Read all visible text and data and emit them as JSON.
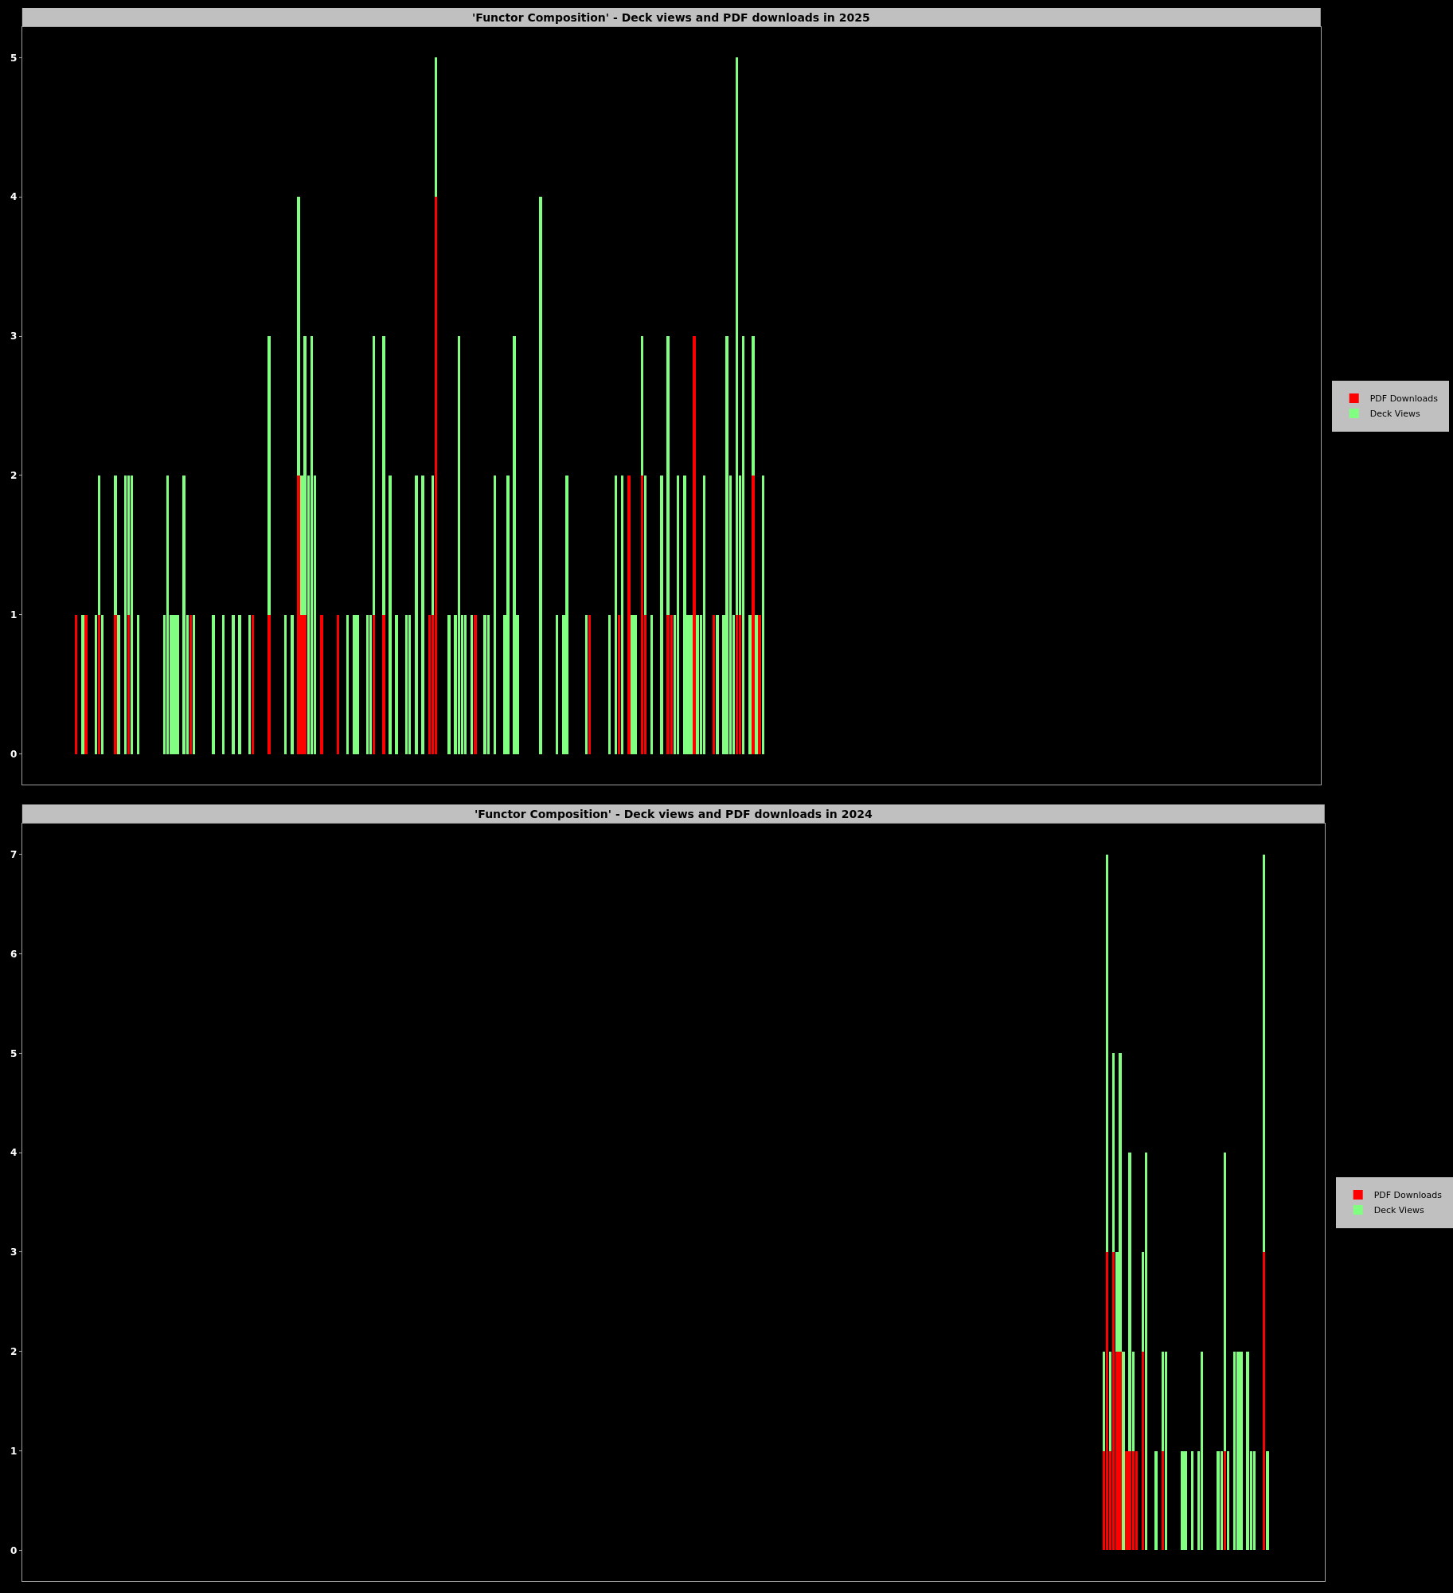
{
  "chart_data": [
    {
      "type": "bar",
      "title": "'Functor Composition' - Deck views and PDF downloads in 2025",
      "stacked": true,
      "grid": false,
      "legend": "right",
      "tick_labels": "y",
      "ylim": [
        -0.22,
        5.22
      ],
      "yticks": [
        0,
        1,
        2,
        3,
        4,
        5
      ],
      "categories": [
        null,
        null,
        null,
        null,
        null,
        null,
        null,
        null,
        null,
        null,
        null,
        null,
        null,
        null,
        null,
        null,
        null,
        null,
        null,
        null,
        null,
        null,
        null,
        null,
        null,
        null,
        null,
        null,
        null,
        null,
        null,
        null,
        null,
        null,
        null,
        null,
        null,
        null,
        null,
        null,
        null,
        null,
        null,
        null,
        null,
        null,
        null,
        null,
        null,
        null,
        null,
        null,
        null,
        null,
        null,
        null,
        null,
        null,
        null,
        null,
        null,
        null,
        null,
        null,
        null,
        null,
        null,
        null,
        null,
        null,
        null,
        null,
        null,
        null,
        null,
        null,
        null,
        null,
        null,
        null,
        null,
        null,
        null,
        null,
        null,
        null,
        null,
        null,
        null,
        null,
        null,
        null,
        null,
        null,
        null,
        null,
        null,
        null,
        null,
        null,
        null,
        null,
        null,
        null,
        null,
        null,
        null,
        null,
        null,
        null,
        null,
        null,
        null,
        null,
        null,
        null,
        null,
        null,
        null,
        null,
        null,
        null,
        null,
        null,
        null,
        null,
        null,
        null,
        null,
        null,
        null,
        null,
        null,
        null,
        null,
        null,
        null,
        null,
        null,
        null,
        null,
        null,
        null,
        null,
        null,
        null,
        null,
        null,
        null,
        null,
        null,
        null,
        null,
        null,
        null,
        null,
        null,
        null,
        null,
        null,
        null,
        null,
        null,
        null,
        null,
        null,
        null,
        null,
        null,
        null,
        null,
        null,
        null,
        null,
        null,
        null,
        null,
        null,
        null,
        null,
        null,
        null,
        null,
        null,
        null,
        null,
        null,
        null,
        null,
        null,
        null,
        null,
        null,
        null,
        null,
        null,
        null,
        null,
        null,
        null,
        null,
        null,
        null,
        null,
        null,
        null,
        null,
        null,
        null,
        null,
        null,
        null,
        null,
        null,
        null,
        null,
        null,
        null,
        null,
        null,
        null,
        null,
        null,
        null,
        null,
        null,
        null,
        null,
        null,
        null,
        null,
        null,
        null,
        null,
        null,
        null,
        null,
        null,
        null,
        null,
        null,
        null,
        null,
        null,
        null,
        null,
        null,
        null,
        null,
        null,
        null,
        null,
        null,
        null,
        null,
        null,
        null,
        null,
        null,
        null,
        null,
        null,
        null,
        null,
        null,
        null,
        null,
        null,
        null,
        null,
        null,
        null,
        null,
        null,
        null,
        null,
        null,
        null,
        null,
        null,
        null,
        null,
        null,
        null,
        null,
        null,
        null,
        null,
        null,
        null,
        null,
        null,
        null,
        null,
        null,
        null,
        null,
        null,
        null,
        null,
        null,
        null,
        null,
        null,
        null,
        null,
        null,
        null,
        null,
        null,
        null,
        null,
        null,
        null,
        null,
        null,
        null,
        null,
        null,
        null,
        null,
        null,
        null,
        null,
        null,
        null,
        null,
        null,
        null,
        null,
        null,
        null,
        null,
        null,
        null,
        null,
        null,
        null,
        null,
        null,
        null,
        null,
        null,
        null,
        null,
        null,
        null,
        null,
        null,
        null,
        null,
        null,
        null,
        null,
        null,
        null,
        null,
        null,
        null,
        null,
        null,
        null,
        null,
        null,
        null,
        null,
        null,
        null,
        null,
        null,
        null,
        null,
        null,
        null,
        null,
        null,
        null,
        null,
        null,
        null,
        null,
        null,
        null,
        null,
        null,
        null,
        null,
        null,
        null,
        null,
        null,
        null,
        null,
        null,
        null,
        null,
        null
      ],
      "series": [
        {
          "name": "PDF Downloads",
          "color": "#ff0000",
          "values": [
            0,
            0,
            0,
            0,
            0,
            0,
            0,
            0,
            0,
            0,
            0,
            0,
            0,
            0,
            0,
            0,
            1,
            0,
            0,
            1,
            0,
            0,
            0,
            1,
            0,
            0,
            0,
            0,
            1,
            0,
            0,
            0,
            1,
            0,
            0,
            0,
            0,
            0,
            0,
            0,
            0,
            0,
            0,
            0,
            0,
            0,
            0,
            0,
            0,
            0,
            0,
            1,
            0,
            0,
            0,
            0,
            0,
            0,
            0,
            0,
            0,
            0,
            0,
            0,
            0,
            0,
            0,
            0,
            0,
            0,
            1,
            0,
            0,
            0,
            0,
            1,
            0,
            0,
            0,
            0,
            0,
            0,
            0,
            0,
            2,
            1,
            1,
            0,
            0,
            0,
            0,
            1,
            0,
            0,
            0,
            0,
            1,
            0,
            0,
            0,
            0,
            0,
            0,
            0,
            0,
            0,
            0,
            1,
            0,
            0,
            1,
            0,
            0,
            0,
            0,
            0,
            0,
            0,
            0,
            0,
            0,
            0,
            0,
            0,
            1,
            1,
            4,
            0,
            0,
            0,
            0,
            0,
            0,
            0,
            0,
            0,
            0,
            0,
            1,
            0,
            0,
            0,
            0,
            0,
            0,
            0,
            0,
            0,
            0,
            0,
            0,
            0,
            0,
            0,
            0,
            0,
            0,
            0,
            0,
            0,
            0,
            0,
            0,
            0,
            0,
            0,
            0,
            0,
            0,
            0,
            0,
            0,
            0,
            1,
            0,
            0,
            0,
            0,
            0,
            0,
            0,
            0,
            1,
            0,
            0,
            2,
            0,
            0,
            0,
            2,
            1,
            0,
            0,
            0,
            0,
            0,
            0,
            1,
            1,
            0,
            0,
            0,
            0,
            0,
            0,
            3,
            0,
            0,
            0,
            0,
            0,
            1,
            0,
            0,
            0,
            0,
            0,
            0,
            1,
            1,
            0,
            0,
            0,
            2,
            0,
            1,
            0,
            0,
            0,
            0,
            0,
            0,
            0,
            0,
            0,
            0,
            0,
            0,
            0,
            0,
            0,
            0,
            0,
            0,
            0,
            0,
            0,
            0,
            0,
            0,
            0,
            0,
            0,
            0,
            0,
            0,
            0,
            0,
            0,
            0,
            0,
            0,
            0,
            0,
            0,
            0,
            0,
            0,
            0,
            0,
            0,
            0,
            0,
            0,
            0,
            0,
            0,
            0,
            0,
            0,
            0,
            0,
            0,
            0,
            0,
            0,
            0,
            0,
            0,
            0,
            0,
            0,
            0,
            0,
            0,
            0,
            0,
            0,
            0,
            0,
            0,
            0,
            0,
            0,
            0,
            0,
            0,
            0,
            0,
            0,
            0,
            0,
            0,
            0,
            0,
            0,
            0,
            0,
            0,
            0,
            0,
            0,
            0,
            0,
            0,
            0,
            0,
            0,
            0,
            0,
            0,
            0,
            0,
            0,
            0,
            0,
            0,
            0,
            0,
            0,
            0,
            0,
            0,
            0,
            0,
            0,
            0,
            0,
            0,
            0,
            0,
            0,
            0,
            0,
            0,
            0,
            0,
            0,
            0,
            0,
            0,
            0,
            0,
            0,
            0,
            0,
            0,
            0,
            0,
            0,
            0,
            0,
            0,
            0,
            0,
            0,
            0,
            0,
            0,
            0,
            0,
            0,
            0,
            0,
            0,
            0,
            0,
            0,
            0,
            0,
            0,
            0,
            0,
            0,
            0,
            0,
            0
          ]
        },
        {
          "name": "Deck Views",
          "color": "#80ff80",
          "values": [
            0,
            0,
            0,
            0,
            0,
            0,
            0,
            0,
            0,
            0,
            0,
            0,
            0,
            0,
            0,
            0,
            0,
            0,
            1,
            0,
            0,
            0,
            1,
            1,
            1,
            0,
            0,
            0,
            1,
            1,
            0,
            2,
            1,
            2,
            0,
            1,
            0,
            0,
            0,
            0,
            0,
            0,
            0,
            1,
            2,
            1,
            1,
            1,
            0,
            2,
            1,
            0,
            1,
            0,
            0,
            0,
            0,
            0,
            1,
            0,
            0,
            1,
            0,
            0,
            1,
            0,
            1,
            0,
            0,
            1,
            0,
            0,
            0,
            0,
            0,
            2,
            0,
            0,
            0,
            0,
            1,
            0,
            1,
            0,
            2,
            1,
            2,
            2,
            3,
            2,
            0,
            0,
            0,
            0,
            0,
            0,
            0,
            0,
            0,
            1,
            0,
            1,
            1,
            0,
            0,
            1,
            1,
            2,
            0,
            0,
            2,
            0,
            2,
            0,
            1,
            0,
            0,
            1,
            1,
            0,
            2,
            0,
            2,
            0,
            0,
            1,
            1,
            0,
            0,
            0,
            1,
            0,
            1,
            3,
            1,
            1,
            0,
            1,
            0,
            0,
            0,
            1,
            1,
            0,
            2,
            0,
            0,
            1,
            2,
            0,
            3,
            1,
            0,
            0,
            0,
            0,
            0,
            0,
            4,
            0,
            0,
            0,
            0,
            1,
            0,
            1,
            2,
            0,
            0,
            0,
            0,
            0,
            1,
            0,
            0,
            0,
            0,
            0,
            0,
            1,
            0,
            2,
            0,
            2,
            0,
            0,
            1,
            1,
            0,
            1,
            1,
            0,
            1,
            0,
            0,
            2,
            0,
            2,
            0,
            1,
            2,
            0,
            2,
            1,
            1,
            0,
            1,
            1,
            2,
            0,
            0,
            0,
            1,
            0,
            1,
            3,
            2,
            1,
            4,
            1,
            3,
            0,
            1,
            1,
            1,
            0,
            2,
            0,
            0,
            0,
            0,
            0,
            0,
            0,
            0,
            0,
            0,
            0,
            0,
            0,
            0,
            0,
            0,
            0,
            0,
            0,
            0,
            0,
            0,
            0,
            0,
            0,
            0,
            0,
            0,
            0,
            0,
            0,
            0,
            0,
            0,
            0,
            0,
            0,
            0,
            0,
            0,
            0,
            0,
            0,
            0,
            0,
            0,
            0,
            0,
            0,
            0,
            0,
            0,
            0,
            0,
            0,
            0,
            0,
            0,
            0,
            0,
            0,
            0,
            0,
            0,
            0,
            0,
            0,
            0,
            0,
            0,
            0,
            0,
            0,
            0,
            0,
            0,
            0,
            0,
            0,
            0,
            0,
            0,
            0,
            0,
            0,
            0,
            0,
            0,
            0,
            0,
            0,
            0,
            0,
            0,
            0,
            0,
            0,
            0,
            0,
            0,
            0,
            0,
            0,
            0,
            0,
            0,
            0,
            0,
            0,
            0,
            0,
            0,
            0,
            0,
            0,
            0,
            0,
            0,
            0,
            0,
            0,
            0,
            0,
            0,
            0,
            0,
            0,
            0,
            0,
            0,
            0,
            0,
            0,
            0,
            0,
            0,
            0,
            0,
            0,
            0,
            0,
            0,
            0,
            0,
            0,
            0,
            0,
            0,
            0,
            0,
            0,
            0,
            0,
            0,
            0,
            0,
            0,
            0,
            0,
            0,
            0,
            0,
            0,
            0,
            0,
            0,
            0,
            0,
            0,
            0
          ]
        }
      ]
    },
    {
      "type": "bar",
      "title": "'Functor Composition' - Deck views and PDF downloads in 2024",
      "stacked": true,
      "grid": false,
      "legend": "right",
      "tick_labels": "y",
      "ylim": [
        -0.31,
        7.31
      ],
      "yticks": [
        0,
        1,
        2,
        3,
        4,
        5,
        6,
        7
      ],
      "categories": [
        null,
        null,
        null,
        null,
        null,
        null,
        null,
        null,
        null,
        null,
        null,
        null,
        null,
        null,
        null,
        null,
        null,
        null,
        null,
        null,
        null,
        null,
        null,
        null,
        null,
        null,
        null,
        null,
        null,
        null,
        null,
        null,
        null,
        null,
        null,
        null,
        null,
        null,
        null,
        null,
        null,
        null,
        null,
        null,
        null,
        null,
        null,
        null,
        null,
        null,
        null,
        null,
        null,
        null,
        null,
        null,
        null,
        null,
        null,
        null,
        null,
        null,
        null,
        null,
        null,
        null,
        null,
        null,
        null,
        null,
        null,
        null,
        null,
        null,
        null,
        null,
        null,
        null,
        null,
        null,
        null,
        null,
        null,
        null,
        null,
        null,
        null,
        null,
        null,
        null,
        null,
        null,
        null,
        null,
        null,
        null,
        null,
        null,
        null,
        null,
        null,
        null,
        null,
        null,
        null,
        null,
        null,
        null,
        null,
        null,
        null,
        null,
        null,
        null,
        null,
        null,
        null,
        null,
        null,
        null,
        null,
        null,
        null,
        null,
        null,
        null,
        null,
        null,
        null,
        null,
        null,
        null,
        null,
        null,
        null,
        null,
        null,
        null,
        null,
        null,
        null,
        null,
        null,
        null,
        null,
        null,
        null,
        null,
        null,
        null,
        null,
        null,
        null,
        null,
        null,
        null,
        null,
        null,
        null,
        null,
        null,
        null,
        null,
        null,
        null,
        null,
        null,
        null,
        null,
        null,
        null,
        null,
        null,
        null,
        null,
        null,
        null,
        null,
        null,
        null,
        null,
        null,
        null,
        null,
        null,
        null,
        null,
        null,
        null,
        null,
        null,
        null,
        null,
        null,
        null,
        null,
        null,
        null,
        null,
        null,
        null,
        null,
        null,
        null,
        null,
        null,
        null,
        null,
        null,
        null,
        null,
        null,
        null,
        null,
        null,
        null,
        null,
        null,
        null,
        null,
        null,
        null,
        null,
        null,
        null,
        null,
        null,
        null,
        null,
        null,
        null,
        null,
        null,
        null,
        null,
        null,
        null,
        null,
        null,
        null,
        null,
        null,
        null,
        null,
        null,
        null,
        null,
        null,
        null,
        null,
        null,
        null,
        null,
        null,
        null,
        null,
        null,
        null,
        null,
        null,
        null,
        null,
        null,
        null,
        null,
        null,
        null,
        null,
        null,
        null,
        null,
        null,
        null,
        null,
        null,
        null,
        null,
        null,
        null,
        null,
        null,
        null,
        null,
        null,
        null,
        null,
        null,
        null,
        null,
        null,
        null,
        null,
        null,
        null,
        null,
        null,
        null,
        null,
        null,
        null,
        null,
        null,
        null,
        null,
        null,
        null,
        null,
        null,
        null,
        null,
        null,
        null,
        null,
        null,
        null,
        null,
        null,
        null,
        null,
        null,
        null,
        null,
        null,
        null,
        null,
        null,
        null,
        null,
        null,
        null,
        null,
        null,
        null,
        null,
        null,
        null,
        null,
        null,
        null,
        null,
        null,
        null,
        null,
        null,
        null,
        null,
        null,
        null,
        null,
        null,
        null,
        null,
        null,
        null,
        null,
        null,
        null,
        null,
        null,
        null,
        null,
        null,
        null,
        null,
        null,
        null,
        null,
        null,
        null,
        null,
        null,
        null,
        null,
        null,
        null,
        null,
        null,
        null,
        null,
        null,
        null,
        null,
        null,
        null,
        null,
        null,
        null,
        null,
        null,
        null,
        null,
        null,
        null,
        null,
        null,
        null,
        null,
        null
      ],
      "series": [
        {
          "name": "PDF Downloads",
          "color": "#ff0000",
          "values": [
            0,
            0,
            0,
            0,
            0,
            0,
            0,
            0,
            0,
            0,
            0,
            0,
            0,
            0,
            0,
            0,
            0,
            0,
            0,
            0,
            0,
            0,
            0,
            0,
            0,
            0,
            0,
            0,
            0,
            0,
            0,
            0,
            0,
            0,
            0,
            0,
            0,
            0,
            0,
            0,
            0,
            0,
            0,
            0,
            0,
            0,
            0,
            0,
            0,
            0,
            0,
            0,
            0,
            0,
            0,
            0,
            0,
            0,
            0,
            0,
            0,
            0,
            0,
            0,
            0,
            0,
            0,
            0,
            0,
            0,
            0,
            0,
            0,
            0,
            0,
            0,
            0,
            0,
            0,
            0,
            0,
            0,
            0,
            0,
            0,
            0,
            0,
            0,
            0,
            0,
            0,
            0,
            0,
            0,
            0,
            0,
            0,
            0,
            0,
            0,
            0,
            0,
            0,
            0,
            0,
            0,
            0,
            0,
            0,
            0,
            0,
            0,
            0,
            0,
            0,
            0,
            0,
            0,
            0,
            0,
            0,
            0,
            0,
            0,
            0,
            0,
            0,
            0,
            0,
            0,
            0,
            0,
            0,
            0,
            0,
            0,
            0,
            0,
            0,
            0,
            0,
            0,
            0,
            0,
            0,
            0,
            0,
            0,
            0,
            0,
            0,
            0,
            0,
            0,
            0,
            0,
            0,
            0,
            0,
            0,
            0,
            0,
            0,
            0,
            0,
            0,
            0,
            0,
            0,
            0,
            0,
            0,
            0,
            0,
            0,
            0,
            0,
            0,
            0,
            0,
            0,
            0,
            0,
            0,
            0,
            0,
            0,
            0,
            0,
            0,
            0,
            0,
            0,
            0,
            0,
            0,
            0,
            0,
            0,
            0,
            0,
            0,
            0,
            0,
            0,
            0,
            0,
            0,
            0,
            0,
            0,
            0,
            0,
            0,
            0,
            0,
            0,
            0,
            0,
            0,
            0,
            0,
            0,
            0,
            0,
            0,
            0,
            0,
            0,
            0,
            0,
            0,
            0,
            0,
            0,
            0,
            0,
            0,
            0,
            0,
            0,
            0,
            0,
            0,
            0,
            0,
            0,
            0,
            0,
            0,
            0,
            0,
            0,
            0,
            0,
            0,
            0,
            0,
            0,
            0,
            0,
            0,
            0,
            0,
            0,
            0,
            0,
            0,
            0,
            0,
            0,
            0,
            0,
            0,
            0,
            0,
            0,
            0,
            0,
            0,
            0,
            0,
            0,
            0,
            0,
            0,
            0,
            0,
            0,
            0,
            0,
            0,
            0,
            0,
            0,
            0,
            0,
            0,
            0,
            0,
            0,
            0,
            0,
            0,
            0,
            0,
            0,
            0,
            0,
            0,
            0,
            0,
            0,
            0,
            0,
            0,
            0,
            0,
            0,
            0,
            0,
            0,
            0,
            0,
            0,
            0,
            0,
            0,
            0,
            0,
            1,
            3,
            1,
            3,
            2,
            2,
            0,
            1,
            1,
            1,
            1,
            0,
            2,
            0,
            0,
            0,
            0,
            0,
            1,
            0,
            0,
            0,
            0,
            0,
            0,
            0,
            0,
            0,
            0,
            0,
            0,
            0,
            0,
            0,
            0,
            0,
            0,
            1,
            0,
            0,
            0,
            0,
            0,
            0,
            0,
            0,
            0,
            0,
            0,
            3,
            0,
            0,
            0,
            0,
            0,
            0,
            0,
            0,
            0,
            0,
            0,
            0,
            0,
            0,
            0,
            0,
            0,
            0
          ]
        },
        {
          "name": "Deck Views",
          "color": "#80ff80",
          "values": [
            0,
            0,
            0,
            0,
            0,
            0,
            0,
            0,
            0,
            0,
            0,
            0,
            0,
            0,
            0,
            0,
            0,
            0,
            0,
            0,
            0,
            0,
            0,
            0,
            0,
            0,
            0,
            0,
            0,
            0,
            0,
            0,
            0,
            0,
            0,
            0,
            0,
            0,
            0,
            0,
            0,
            0,
            0,
            0,
            0,
            0,
            0,
            0,
            0,
            0,
            0,
            0,
            0,
            0,
            0,
            0,
            0,
            0,
            0,
            0,
            0,
            0,
            0,
            0,
            0,
            0,
            0,
            0,
            0,
            0,
            0,
            0,
            0,
            0,
            0,
            0,
            0,
            0,
            0,
            0,
            0,
            0,
            0,
            0,
            0,
            0,
            0,
            0,
            0,
            0,
            0,
            0,
            0,
            0,
            0,
            0,
            0,
            0,
            0,
            0,
            0,
            0,
            0,
            0,
            0,
            0,
            0,
            0,
            0,
            0,
            0,
            0,
            0,
            0,
            0,
            0,
            0,
            0,
            0,
            0,
            0,
            0,
            0,
            0,
            0,
            0,
            0,
            0,
            0,
            0,
            0,
            0,
            0,
            0,
            0,
            0,
            0,
            0,
            0,
            0,
            0,
            0,
            0,
            0,
            0,
            0,
            0,
            0,
            0,
            0,
            0,
            0,
            0,
            0,
            0,
            0,
            0,
            0,
            0,
            0,
            0,
            0,
            0,
            0,
            0,
            0,
            0,
            0,
            0,
            0,
            0,
            0,
            0,
            0,
            0,
            0,
            0,
            0,
            0,
            0,
            0,
            0,
            0,
            0,
            0,
            0,
            0,
            0,
            0,
            0,
            0,
            0,
            0,
            0,
            0,
            0,
            0,
            0,
            0,
            0,
            0,
            0,
            0,
            0,
            0,
            0,
            0,
            0,
            0,
            0,
            0,
            0,
            0,
            0,
            0,
            0,
            0,
            0,
            0,
            0,
            0,
            0,
            0,
            0,
            0,
            0,
            0,
            0,
            0,
            0,
            0,
            0,
            0,
            0,
            0,
            0,
            0,
            0,
            0,
            0,
            0,
            0,
            0,
            0,
            0,
            0,
            0,
            0,
            0,
            0,
            0,
            0,
            0,
            0,
            0,
            0,
            0,
            0,
            0,
            0,
            0,
            0,
            0,
            0,
            0,
            0,
            0,
            0,
            0,
            0,
            0,
            0,
            0,
            0,
            0,
            0,
            0,
            0,
            0,
            0,
            0,
            0,
            0,
            0,
            0,
            0,
            0,
            0,
            0,
            0,
            0,
            0,
            0,
            0,
            0,
            0,
            0,
            0,
            0,
            0,
            0,
            0,
            0,
            0,
            0,
            0,
            0,
            0,
            0,
            0,
            0,
            0,
            0,
            0,
            0,
            0,
            0,
            0,
            0,
            0,
            0,
            0,
            0,
            0,
            0,
            0,
            0,
            0,
            0,
            0,
            1,
            4,
            1,
            2,
            1,
            3,
            2,
            0,
            3,
            1,
            0,
            0,
            1,
            4,
            0,
            0,
            1,
            0,
            1,
            2,
            0,
            0,
            0,
            0,
            1,
            1,
            0,
            1,
            0,
            1,
            2,
            0,
            0,
            0,
            0,
            1,
            1,
            3,
            1,
            0,
            2,
            2,
            2,
            0,
            2,
            1,
            1,
            0,
            0,
            4,
            1,
            0,
            0,
            0,
            0,
            0,
            0,
            0,
            0,
            0,
            0,
            0,
            0,
            0,
            0,
            0,
            0,
            0
          ]
        }
      ]
    }
  ]
}
